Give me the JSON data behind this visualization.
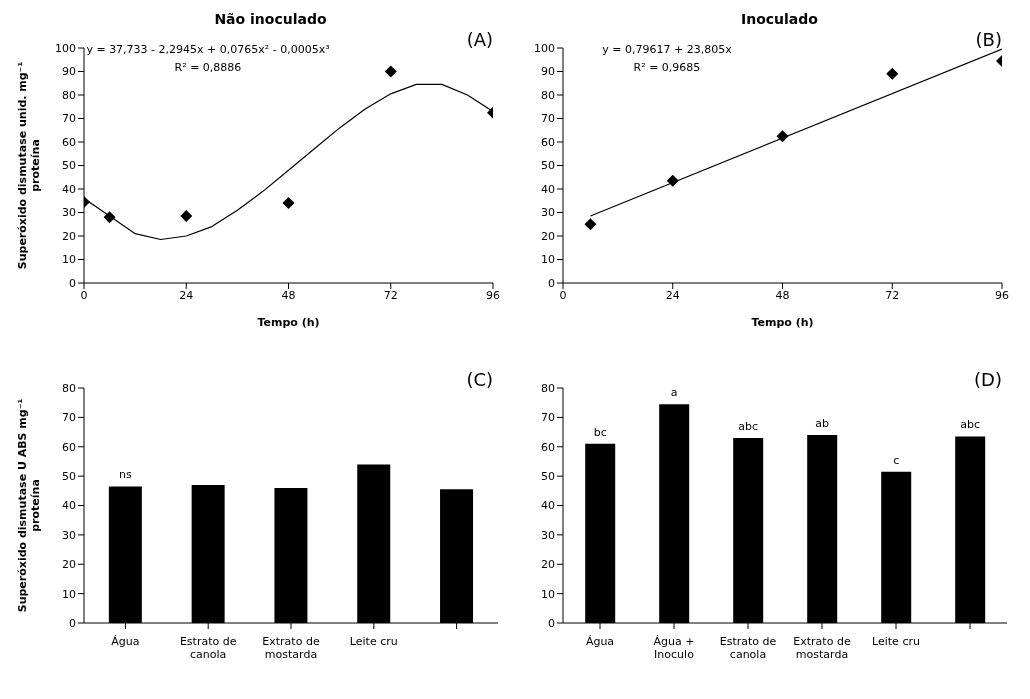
{
  "chart_data": [
    {
      "type": "scatter",
      "title": "Não inoculado",
      "xlabel": "Tempo (h)",
      "ylabel": "Superóxido dismutase  unid. mg⁻¹ proteína",
      "xlim": [
        0,
        96
      ],
      "xticks": [
        0,
        24,
        48,
        72,
        96
      ],
      "ylim": [
        0,
        100
      ],
      "yticks": [
        0,
        10,
        20,
        30,
        40,
        50,
        60,
        70,
        80,
        90,
        100
      ],
      "grid": false,
      "legend": false,
      "annotations": [
        "(A)",
        "y = 37,733 - 2,2945x  + 0,0765x² - 0,0005x³",
        "R² = 0,8886"
      ],
      "series": [
        {
          "type": "scatter",
          "marker": "diamond",
          "color": "#000000",
          "x": [
            0,
            6,
            24,
            48,
            72,
            96
          ],
          "values": [
            34.5,
            28,
            28.5,
            34,
            90,
            72.5
          ]
        },
        {
          "type": "line",
          "marker": "none",
          "color": "#000000",
          "x": [
            0,
            6,
            12,
            18,
            24,
            30,
            36,
            42,
            48,
            54,
            60,
            66,
            72,
            78,
            84,
            90,
            96
          ],
          "values": [
            36,
            28.5,
            21,
            18.5,
            20,
            24,
            31,
            39,
            48,
            57,
            66,
            74,
            80.5,
            84.5,
            84.5,
            80,
            73
          ]
        }
      ]
    },
    {
      "type": "scatter",
      "title": "Inoculado",
      "xlabel": "Tempo (h)",
      "xlim": [
        0,
        96
      ],
      "xticks": [
        0,
        24,
        48,
        72,
        96
      ],
      "ylim": [
        0,
        100
      ],
      "yticks": [
        0,
        10,
        20,
        30,
        40,
        50,
        60,
        70,
        80,
        90,
        100
      ],
      "grid": false,
      "legend": false,
      "annotations": [
        "(B)",
        "y = 0,79617 + 23,805x",
        "R² = 0,9685"
      ],
      "series": [
        {
          "type": "scatter",
          "marker": "diamond",
          "color": "#000000",
          "x": [
            6,
            24,
            48,
            72,
            96
          ],
          "values": [
            25,
            43.5,
            62.5,
            89,
            94.5
          ]
        },
        {
          "type": "line",
          "marker": "none",
          "color": "#000000",
          "x": [
            6,
            96
          ],
          "values": [
            28.5,
            99.5
          ]
        }
      ]
    },
    {
      "type": "bar",
      "ylabel": "Superóxido dismutase U ABS mg⁻¹ proteína",
      "categories": [
        "Água",
        "Estrato de canola",
        "Extrato de mostarda",
        "Leite cru",
        null
      ],
      "ylim": [
        0,
        80
      ],
      "yticks": [
        0,
        10,
        20,
        30,
        40,
        50,
        60,
        70,
        80
      ],
      "grid": false,
      "legend": false,
      "annotations": [
        "(C)"
      ],
      "series": [
        {
          "color": "#000000",
          "values": [
            46.5,
            47,
            46,
            54,
            45.5
          ],
          "value_labels": [
            "ns",
            null,
            null,
            null,
            null
          ]
        }
      ]
    },
    {
      "type": "bar",
      "categories": [
        "Água",
        "Água + Inoculo",
        "Estrato de canola",
        "Extrato de mostarda",
        "Leite cru",
        null
      ],
      "ylim": [
        0,
        80
      ],
      "yticks": [
        0,
        10,
        20,
        30,
        40,
        50,
        60,
        70,
        80
      ],
      "grid": false,
      "legend": false,
      "annotations": [
        "(D)"
      ],
      "series": [
        {
          "color": "#000000",
          "values": [
            61,
            74.5,
            63,
            64,
            51.5,
            63.5
          ],
          "value_labels": [
            "bc",
            "a",
            "abc",
            "ab",
            "c",
            "abc"
          ]
        }
      ]
    }
  ]
}
